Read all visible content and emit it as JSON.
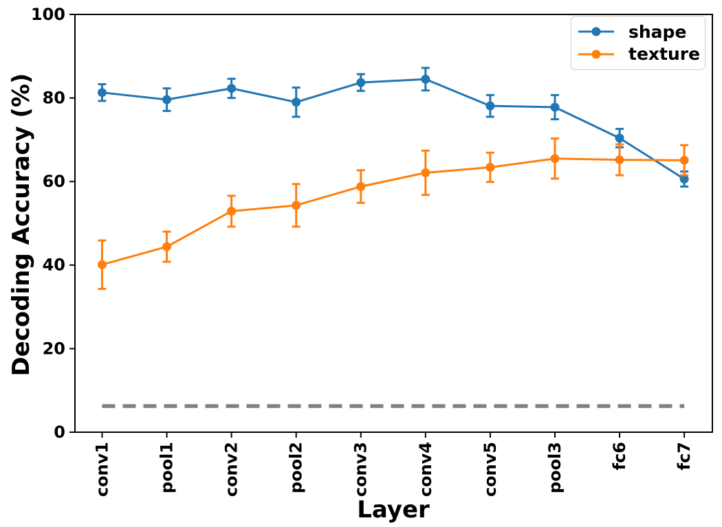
{
  "chart_data": {
    "type": "line",
    "title": "",
    "xlabel": "Layer",
    "ylabel": "Decoding Accuracy (%)",
    "categories": [
      "conv1",
      "pool1",
      "conv2",
      "pool2",
      "conv3",
      "conv4",
      "conv5",
      "pool3",
      "fc6",
      "fc7"
    ],
    "series": [
      {
        "name": "shape",
        "color": "#1f77b4",
        "marker": "circle",
        "values": [
          81.3,
          79.6,
          82.3,
          79.0,
          83.7,
          84.5,
          78.1,
          77.8,
          70.4,
          60.6
        ],
        "errors": [
          2.0,
          2.7,
          2.3,
          3.5,
          2.0,
          2.7,
          2.6,
          2.9,
          2.2,
          1.8
        ]
      },
      {
        "name": "texture",
        "color": "#ff7f0e",
        "marker": "circle",
        "values": [
          40.1,
          44.4,
          52.9,
          54.3,
          58.8,
          62.1,
          63.4,
          65.5,
          65.2,
          65.1
        ],
        "errors": [
          5.8,
          3.6,
          3.7,
          5.1,
          3.9,
          5.3,
          3.5,
          4.8,
          3.7,
          3.6
        ]
      }
    ],
    "chance_line": {
      "value": 6.25,
      "color": "#808080",
      "style": "dashed"
    },
    "ylim": [
      0,
      100
    ],
    "yticks": [
      0,
      20,
      40,
      60,
      80,
      100
    ],
    "grid": false,
    "legend": {
      "position": "upper right",
      "labels": [
        "shape",
        "texture"
      ]
    }
  }
}
